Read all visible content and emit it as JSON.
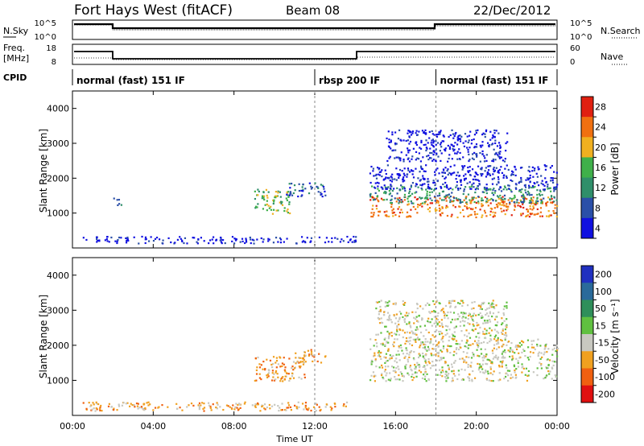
{
  "header": {
    "station": "Fort Hays West (fitACF)",
    "beam": "Beam 08",
    "date": "22/Dec/2012"
  },
  "noise_panel": {
    "left_label": "N.Sky",
    "right_label": "N.Search",
    "left_ticks": [
      "10^5",
      "10^0"
    ],
    "right_ticks": [
      "10^5",
      "10^0"
    ]
  },
  "freq_panel": {
    "left_label_1": "Freq.",
    "left_label_2": "[MHz]",
    "right_label": "Nave",
    "left_ticks": [
      "18",
      "8"
    ],
    "right_ticks": [
      "60",
      "0"
    ]
  },
  "cpid": {
    "label": "CPID",
    "segments": [
      {
        "name": "normal (fast) 151 IF",
        "start_h": 0,
        "end_h": 12
      },
      {
        "name": "rbsp 200 IF",
        "start_h": 12,
        "end_h": 18
      },
      {
        "name": "normal (fast) 151 IF",
        "start_h": 18,
        "end_h": 24
      }
    ]
  },
  "chart_data": [
    {
      "type": "heatmap",
      "name": "Power",
      "xlabel": "",
      "ylabel": "Slant Range [km]",
      "xlim": [
        0,
        24
      ],
      "ylim": [
        0,
        4500
      ],
      "yticks": [
        "1000",
        "2000",
        "3000",
        "4000"
      ],
      "colorbar": {
        "label": "Power [dB]",
        "ticks": [
          "4",
          "8",
          "12",
          "16",
          "20",
          "24",
          "28"
        ],
        "colors": [
          "#1010e0",
          "#2a4fa8",
          "#2f8f6a",
          "#3fb04a",
          "#f0b020",
          "#f07010",
          "#e02010"
        ]
      },
      "regions": [
        {
          "t0": 9.0,
          "t1": 10.8,
          "r0": 1000,
          "r1": 1700,
          "level": 3
        },
        {
          "t0": 10.5,
          "t1": 12.5,
          "r0": 1500,
          "r1": 1900,
          "level": 1
        },
        {
          "t0": 14.7,
          "t1": 24.0,
          "r0": 900,
          "r1": 1500,
          "level": 5
        },
        {
          "t0": 14.7,
          "t1": 24.0,
          "r0": 1300,
          "r1": 1800,
          "level": 2
        },
        {
          "t0": 14.7,
          "t1": 24.0,
          "r0": 1700,
          "r1": 2400,
          "level": 0
        },
        {
          "t0": 15.5,
          "t1": 21.5,
          "r0": 2500,
          "r1": 3400,
          "level": 0
        },
        {
          "t0": 2.0,
          "t1": 2.4,
          "r0": 1250,
          "r1": 1500,
          "level": 1
        },
        {
          "t0": 0.5,
          "t1": 14.0,
          "r0": 150,
          "r1": 350,
          "level": 0
        }
      ]
    },
    {
      "type": "heatmap",
      "name": "Velocity",
      "xlabel": "Time UT",
      "ylabel": "Slant Range [km]",
      "xlim": [
        0,
        24
      ],
      "ylim": [
        0,
        4500
      ],
      "xticks": [
        "00:00",
        "04:00",
        "08:00",
        "12:00",
        "16:00",
        "20:00",
        "00:00"
      ],
      "yticks": [
        "1000",
        "2000",
        "3000",
        "4000"
      ],
      "colorbar": {
        "label": "Velocity [m s⁻¹]",
        "ticks": [
          "200",
          "100",
          "50",
          "15",
          "-15",
          "-50",
          "-100",
          "-200"
        ],
        "colors": [
          "#2030c0",
          "#2a6a9a",
          "#2f8f5a",
          "#60c040",
          "#c8c8c0",
          "#f0a020",
          "#f06010",
          "#e01010"
        ]
      },
      "regions": [
        {
          "t0": 9.0,
          "t1": 11.5,
          "r0": 1000,
          "r1": 1700,
          "level": 5
        },
        {
          "t0": 11.0,
          "t1": 12.5,
          "r0": 1500,
          "r1": 1900,
          "level": 5
        },
        {
          "t0": 14.7,
          "t1": 24.0,
          "r0": 1000,
          "r1": 2200,
          "level": 4
        },
        {
          "t0": 15.0,
          "t1": 21.5,
          "r0": 2200,
          "r1": 3300,
          "level": 4
        },
        {
          "t0": 0.5,
          "t1": 14.0,
          "r0": 150,
          "r1": 400,
          "level": 5
        }
      ]
    }
  ]
}
